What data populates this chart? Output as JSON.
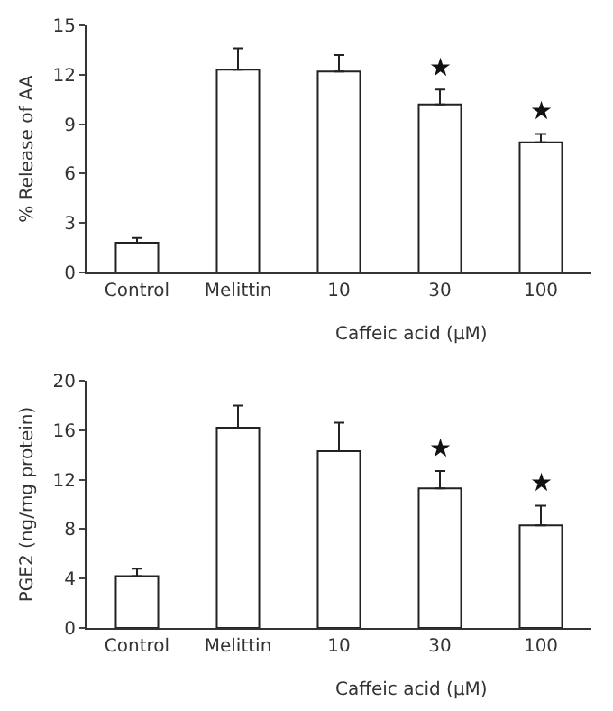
{
  "chart_data": [
    {
      "type": "bar",
      "ylabel": "% Release of AA",
      "xlabel": "Caffeic acid (μM)",
      "categories": [
        "Control",
        "Melittin",
        "10",
        "30",
        "100"
      ],
      "color": "#ffffff",
      "values": [
        1.8,
        12.3,
        12.2,
        10.2,
        7.9
      ],
      "errors": [
        [
          1.8,
          2.1
        ],
        [
          12.3,
          13.6
        ],
        [
          12.2,
          13.2
        ],
        [
          10.2,
          11.1
        ],
        [
          7.9,
          8.4
        ]
      ],
      "ylim": [
        0,
        15
      ],
      "yticks": [
        0,
        3,
        6,
        9,
        12,
        15
      ],
      "grid": false,
      "annotations": [
        {
          "text": "★",
          "x": "30",
          "y": 11.1
        },
        {
          "text": "★",
          "x": "100",
          "y": 8.4
        }
      ]
    },
    {
      "type": "bar",
      "ylabel": "PGE2 (ng/mg protein)",
      "xlabel": "Caffeic acid (μM)",
      "categories": [
        "Control",
        "Melittin",
        "10",
        "30",
        "100"
      ],
      "color": "#ffffff",
      "values": [
        4.2,
        16.2,
        14.3,
        11.3,
        8.3
      ],
      "errors": [
        [
          4.2,
          4.8
        ],
        [
          16.2,
          18.0
        ],
        [
          14.3,
          16.6
        ],
        [
          11.3,
          12.7
        ],
        [
          8.3,
          9.9
        ]
      ],
      "ylim": [
        0,
        20
      ],
      "yticks": [
        0,
        4,
        8,
        12,
        16,
        20
      ],
      "grid": false,
      "annotations": [
        {
          "text": "★",
          "x": "30",
          "y": 12.7
        },
        {
          "text": "★",
          "x": "100",
          "y": 9.9
        }
      ]
    }
  ]
}
